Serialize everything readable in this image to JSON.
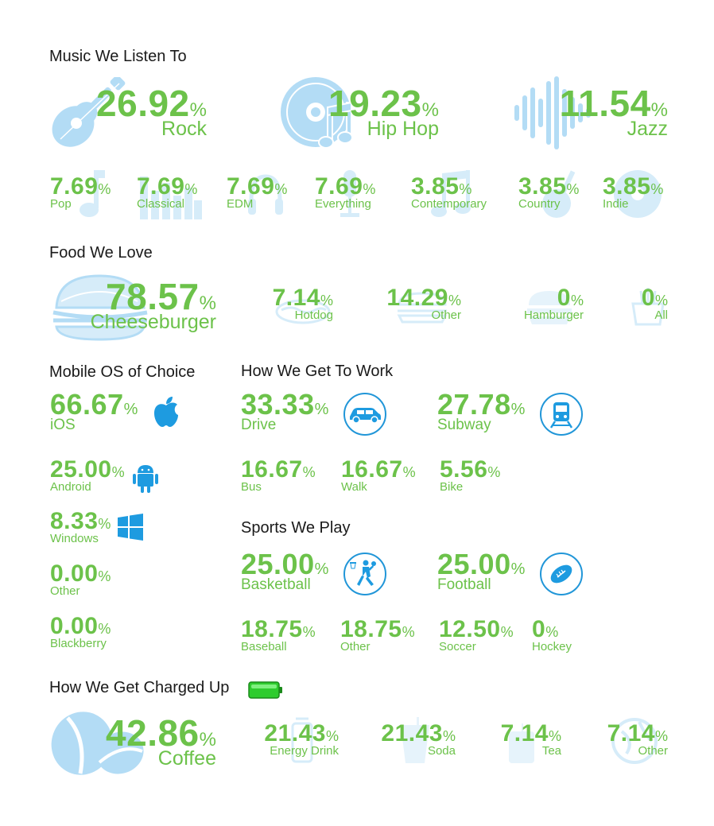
{
  "music": {
    "title": "Music We Listen To",
    "big": [
      {
        "value": "26.92",
        "unit": "%",
        "label": "Rock",
        "icon": "guitar-icon"
      },
      {
        "value": "19.23",
        "unit": "%",
        "label": "Hip Hop",
        "icon": "cd-icon"
      },
      {
        "value": "11.54",
        "unit": "%",
        "label": "Jazz",
        "icon": "sound-wave-icon"
      }
    ],
    "small": [
      {
        "value": "7.69",
        "unit": "%",
        "label": "Pop"
      },
      {
        "value": "7.69",
        "unit": "%",
        "label": "Classical"
      },
      {
        "value": "7.69",
        "unit": "%",
        "label": "EDM"
      },
      {
        "value": "7.69",
        "unit": "%",
        "label": "Everything"
      },
      {
        "value": "3.85",
        "unit": "%",
        "label": "Contemporary"
      },
      {
        "value": "3.85",
        "unit": "%",
        "label": "Country"
      },
      {
        "value": "3.85",
        "unit": "%",
        "label": "Indie"
      }
    ]
  },
  "food": {
    "title": "Food We Love",
    "big": {
      "value": "78.57",
      "unit": "%",
      "label": "Cheeseburger",
      "icon": "burger-icon"
    },
    "small": [
      {
        "value": "7.14",
        "unit": "%",
        "label": "Hotdog"
      },
      {
        "value": "14.29",
        "unit": "%",
        "label": "Other"
      },
      {
        "value": "0",
        "unit": "%",
        "label": "Hamburger"
      },
      {
        "value": "0",
        "unit": "%",
        "label": "All"
      }
    ]
  },
  "mobile": {
    "title": "Mobile OS of Choice",
    "items": [
      {
        "value": "66.67",
        "unit": "%",
        "label": "iOS",
        "icon": "apple-icon"
      },
      {
        "value": "25.00",
        "unit": "%",
        "label": "Android",
        "icon": "android-icon"
      },
      {
        "value": "8.33",
        "unit": "%",
        "label": "Windows",
        "icon": "windows-icon"
      },
      {
        "value": "0.00",
        "unit": "%",
        "label": "Other"
      },
      {
        "value": "0.00",
        "unit": "%",
        "label": "Blackberry"
      }
    ]
  },
  "work": {
    "title": "How We Get To Work",
    "big": [
      {
        "value": "33.33",
        "unit": "%",
        "label": "Drive",
        "icon": "car-icon"
      },
      {
        "value": "27.78",
        "unit": "%",
        "label": "Subway",
        "icon": "train-icon"
      }
    ],
    "small": [
      {
        "value": "16.67",
        "unit": "%",
        "label": "Bus"
      },
      {
        "value": "16.67",
        "unit": "%",
        "label": "Walk"
      },
      {
        "value": "5.56",
        "unit": "%",
        "label": "Bike"
      }
    ]
  },
  "sports": {
    "title": "Sports We Play",
    "big": [
      {
        "value": "25.00",
        "unit": "%",
        "label": "Basketball",
        "icon": "basketball-player-icon"
      },
      {
        "value": "25.00",
        "unit": "%",
        "label": "Football",
        "icon": "football-icon"
      }
    ],
    "small": [
      {
        "value": "18.75",
        "unit": "%",
        "label": "Baseball"
      },
      {
        "value": "18.75",
        "unit": "%",
        "label": "Other"
      },
      {
        "value": "12.50",
        "unit": "%",
        "label": "Soccer"
      },
      {
        "value": "0",
        "unit": "%",
        "label": "Hockey"
      }
    ]
  },
  "charged": {
    "title": "How We Get Charged Up",
    "title_icon": "battery-icon",
    "big": {
      "value": "42.86",
      "unit": "%",
      "label": "Coffee",
      "icon": "coffee-bean-icon"
    },
    "small": [
      {
        "value": "21.43",
        "unit": "%",
        "label": "Energy Drink"
      },
      {
        "value": "21.43",
        "unit": "%",
        "label": "Soda"
      },
      {
        "value": "7.14",
        "unit": "%",
        "label": "Tea"
      },
      {
        "value": "7.14",
        "unit": "%",
        "label": "Other"
      }
    ]
  },
  "colors": {
    "accent_green": "#6cc24a",
    "icon_light_blue": "#b3dcf5",
    "icon_blue": "#2196d8",
    "battery_green": "#33cc33"
  }
}
